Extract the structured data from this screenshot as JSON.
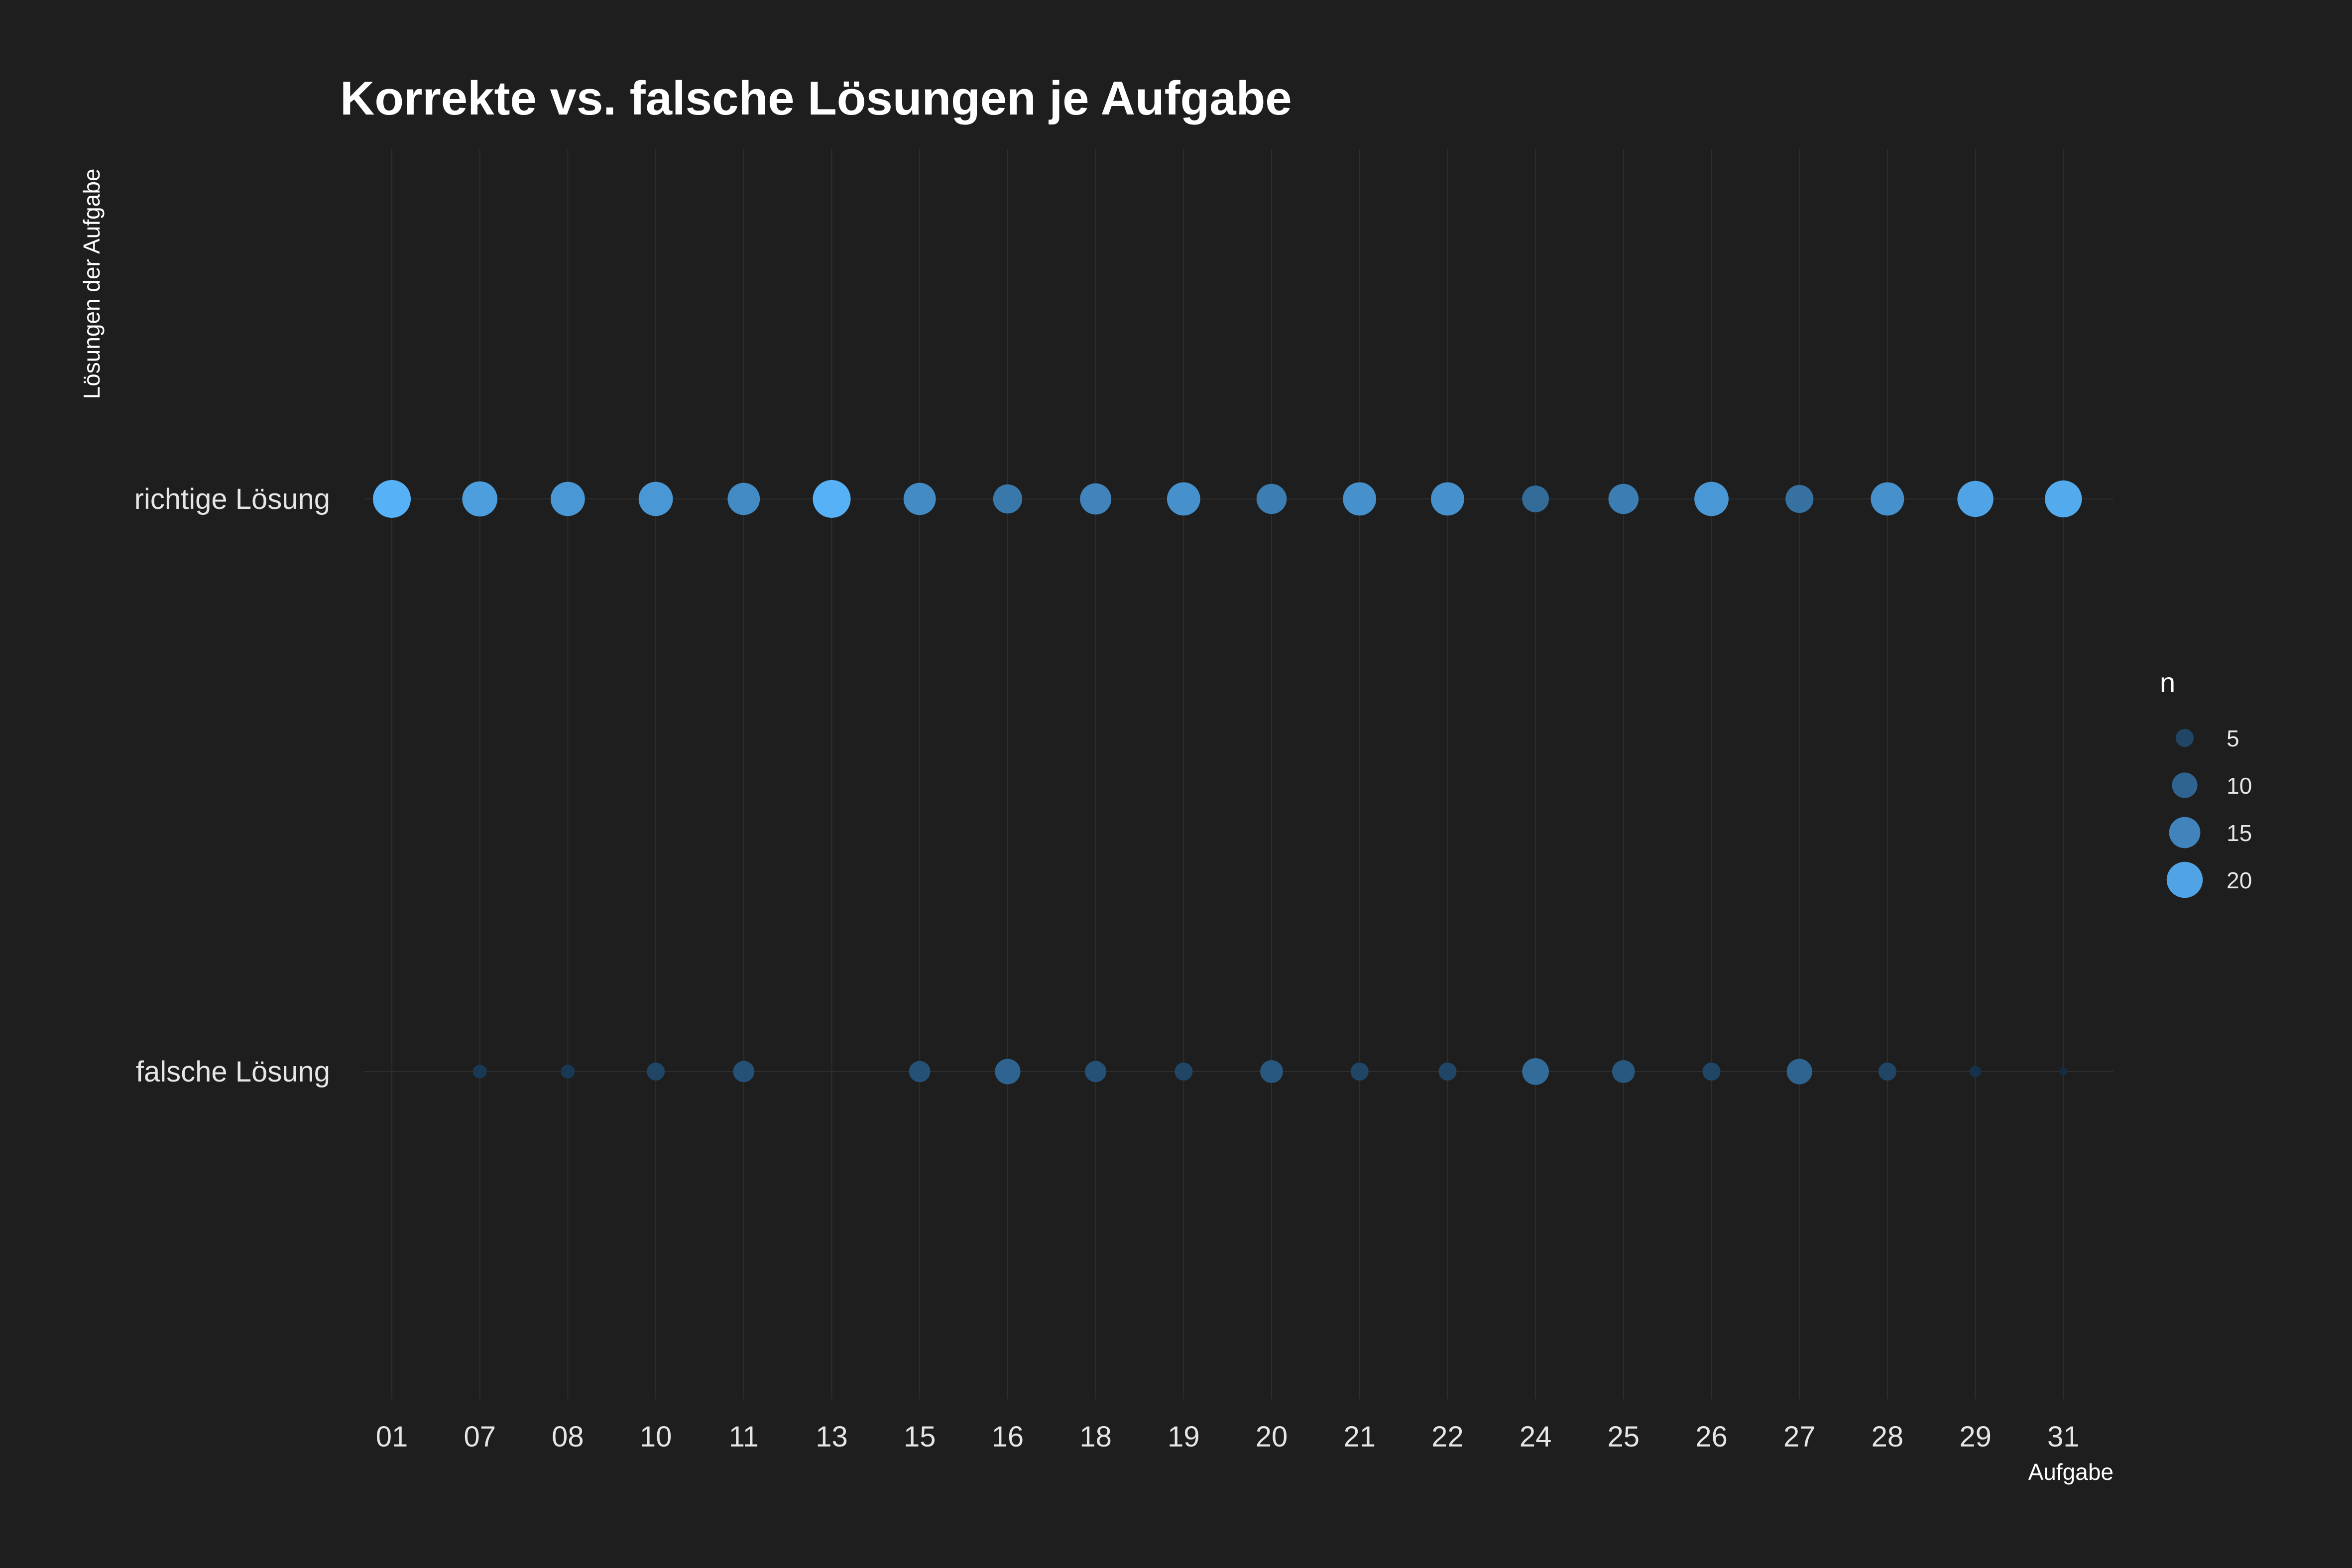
{
  "chart_data": {
    "type": "scatter",
    "title": "Korrekte vs. falsche Lösungen je Aufgabe",
    "xlabel": "Aufgabe",
    "ylabel": "Lösungen der Aufgabe",
    "categories": [
      "01",
      "07",
      "08",
      "10",
      "11",
      "13",
      "15",
      "16",
      "18",
      "19",
      "20",
      "21",
      "22",
      "24",
      "25",
      "26",
      "27",
      "28",
      "29",
      "31"
    ],
    "y_categories": [
      "falsche Lösung",
      "richtige Lösung"
    ],
    "series": [
      {
        "category": "richtige Lösung",
        "values": [
          22,
          19,
          18,
          18,
          16,
          22,
          16,
          13,
          15,
          17,
          14,
          17,
          17,
          11,
          14,
          18,
          12,
          17,
          20,
          21
        ]
      },
      {
        "category": "falsche Lösung",
        "values": [
          0,
          3,
          3,
          5,
          7,
          0,
          7,
          10,
          7,
          5,
          8,
          5,
          5,
          11,
          8,
          5,
          10,
          5,
          2,
          1
        ]
      }
    ],
    "legend": {
      "title": "n",
      "values": [
        5,
        10,
        15,
        20
      ],
      "labels": [
        "5",
        "10",
        "15",
        "20"
      ],
      "placement": "right"
    },
    "size_range": [
      1,
      22
    ],
    "grid": true
  },
  "colors": {
    "background": "#1e1e1e",
    "grid": "#2e2e2e",
    "low": "#132b43",
    "high": "#56b1f7"
  }
}
